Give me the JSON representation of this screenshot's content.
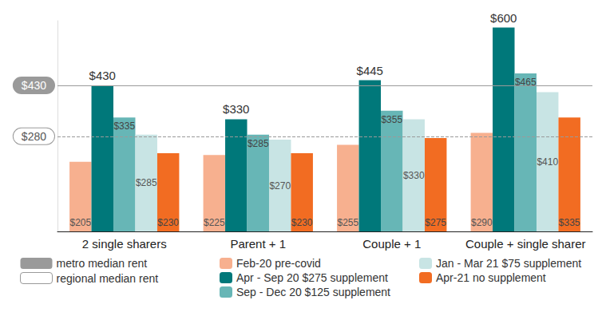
{
  "chart_data": {
    "type": "bar",
    "categories": [
      "2 single sharers",
      "Parent + 1",
      "Couple + 1",
      "Couple + single sharer"
    ],
    "series": [
      {
        "name": "Feb-20 pre-covid",
        "color": "#f7b08f",
        "values": [
          205,
          225,
          255,
          290
        ],
        "value_labels": [
          "$205",
          "$225",
          "$255",
          "$290"
        ]
      },
      {
        "name": "Apr - Sep 20 $275 supplement",
        "color": "#00787a",
        "values": [
          430,
          330,
          445,
          600
        ],
        "value_labels": [
          "$430",
          "$330",
          "$445",
          "$600"
        ]
      },
      {
        "name": "Sep - Dec 20 $125 supplement",
        "color": "#67b6b6",
        "values": [
          335,
          285,
          355,
          465
        ],
        "value_labels": [
          "$335",
          "$285",
          "$355",
          "$465"
        ]
      },
      {
        "name": "Jan - Mar 21 $75 supplement",
        "color": "#c8e4e4",
        "values": [
          285,
          270,
          330,
          410
        ],
        "value_labels": [
          "$285",
          "$270",
          "$330",
          "$410"
        ]
      },
      {
        "name": "Apr-21 no supplement",
        "color": "#f26c22",
        "values": [
          230,
          230,
          275,
          335
        ],
        "value_labels": [
          "$230",
          "$230",
          "$275",
          "$335"
        ]
      }
    ],
    "reference_lines": [
      {
        "name": "metro median rent",
        "value": 430,
        "label": "$430",
        "line_style": "solid"
      },
      {
        "name": "regional median rent",
        "value": 280,
        "label": "$280",
        "line_style": "dashed"
      }
    ],
    "ylim": [
      0,
      620
    ],
    "tick_labels": false,
    "grid": false,
    "data_labels": true,
    "legend": "bottom"
  }
}
